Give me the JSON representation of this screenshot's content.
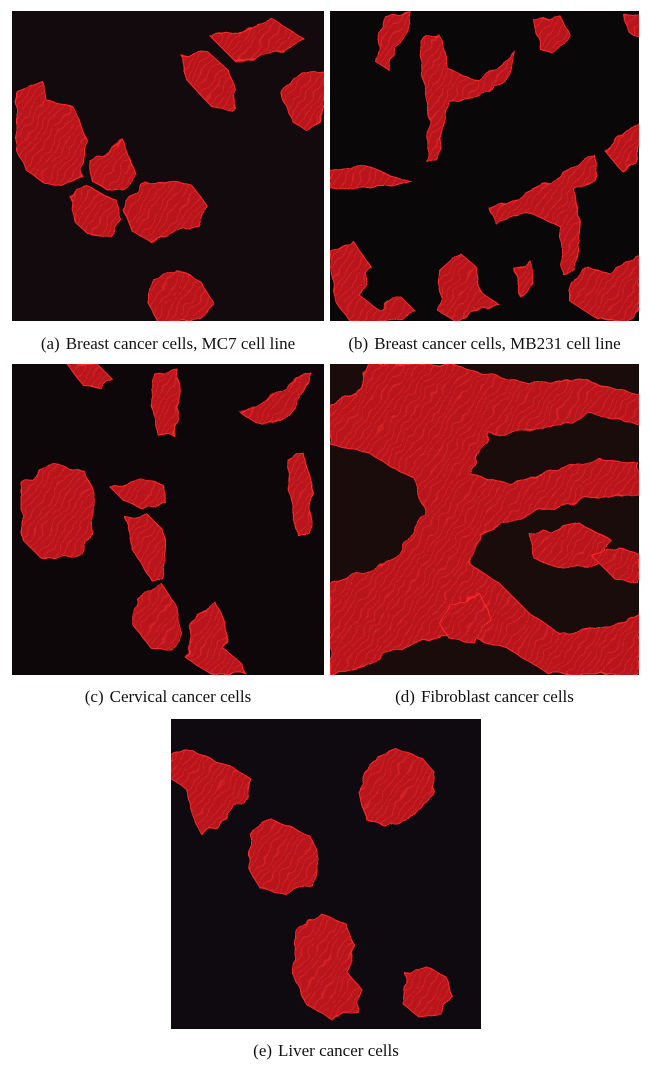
{
  "figure": {
    "panels": [
      {
        "id": "a",
        "label": "(a)",
        "caption": "Breast cancer cells, MC7 cell line"
      },
      {
        "id": "b",
        "label": "(b)",
        "caption": "Breast cancer cells, MB231 cell line"
      },
      {
        "id": "c",
        "label": "(c)",
        "caption": "Cervical cancer cells"
      },
      {
        "id": "d",
        "label": "(d)",
        "caption": "Fibroblast cancer cells"
      },
      {
        "id": "e",
        "label": "(e)",
        "caption": "Liver cancer cells"
      }
    ],
    "colors": {
      "background": "#0c0709",
      "cell_stain": "#d8161e",
      "cell_dim": "#8a0f14"
    }
  }
}
